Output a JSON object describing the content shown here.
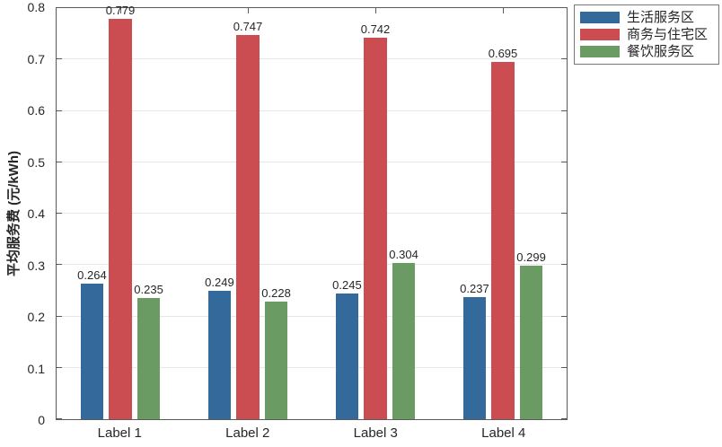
{
  "figure": {
    "background": "#ffffff",
    "axis_color": "#5a5a5a",
    "grid_color": "#e6e6e6",
    "text_color": "#262626"
  },
  "chart_data": {
    "type": "bar",
    "title": "",
    "categories": [
      "Label 1",
      "Label 2",
      "Label 3",
      "Label 4"
    ],
    "series": [
      {
        "name": "生活服务区",
        "color": "#336a9b",
        "values": [
          0.264,
          0.249,
          0.245,
          0.237
        ]
      },
      {
        "name": "商务与住宅区",
        "color": "#cb4d51",
        "values": [
          0.779,
          0.747,
          0.742,
          0.695
        ]
      },
      {
        "name": "餐饮服务区",
        "color": "#6a9b63",
        "values": [
          0.235,
          0.228,
          0.304,
          0.299
        ]
      }
    ],
    "xlabel": "",
    "ylabel": "平均服务费 (元/kWh)",
    "ylim": [
      0,
      0.8
    ],
    "yticks": [
      0,
      0.1,
      0.2,
      0.3,
      0.4,
      0.5,
      0.6,
      0.7,
      0.8
    ],
    "grid": "horizontal",
    "bar_labels": true,
    "bar_label_decimals": 3,
    "legend_position": "top-right-outside"
  }
}
